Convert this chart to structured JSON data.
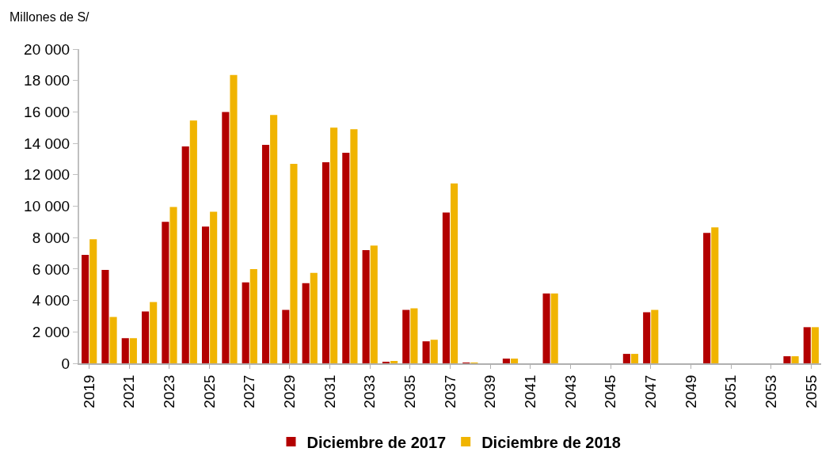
{
  "chart_data": {
    "type": "bar",
    "ylabel": "Millones de S/",
    "categories": [
      "2019",
      null,
      "2021",
      null,
      "2023",
      null,
      "2025",
      null,
      "2027",
      null,
      "2029",
      null,
      "2031",
      null,
      "2033",
      null,
      "2035",
      null,
      "2037",
      null,
      "2039",
      null,
      "2041",
      null,
      "2043",
      null,
      "2045",
      null,
      "2047",
      null,
      "2049",
      null,
      "2051",
      null,
      "2053",
      null,
      "2055"
    ],
    "series": [
      {
        "name": "Diciembre de 2017",
        "color": "#b30000",
        "values": [
          6900,
          5950,
          1600,
          3300,
          9000,
          13800,
          8700,
          16000,
          5150,
          13900,
          3400,
          5100,
          12800,
          13400,
          7200,
          100,
          3400,
          1400,
          9600,
          50,
          0,
          300,
          0,
          4450,
          0,
          0,
          0,
          600,
          3250,
          0,
          0,
          8300,
          0,
          0,
          0,
          450,
          2300
        ]
      },
      {
        "name": "Diciembre de 2018",
        "color": "#f0b400",
        "values": [
          7900,
          2950,
          1600,
          3900,
          9950,
          15450,
          9650,
          18350,
          6000,
          15800,
          12700,
          5750,
          15000,
          14900,
          7500,
          150,
          3500,
          1500,
          11450,
          50,
          0,
          300,
          0,
          4450,
          0,
          0,
          0,
          600,
          3400,
          0,
          0,
          8650,
          0,
          0,
          0,
          450,
          2300
        ]
      }
    ],
    "ylim": [
      0,
      20000
    ],
    "yticks": [
      {
        "value": 0,
        "label": "0"
      },
      {
        "value": 2000,
        "label": "2 000"
      },
      {
        "value": 4000,
        "label": "4 000"
      },
      {
        "value": 6000,
        "label": "6 000"
      },
      {
        "value": 8000,
        "label": "8 000"
      },
      {
        "value": 10000,
        "label": "10 000"
      },
      {
        "value": 12000,
        "label": "12 000"
      },
      {
        "value": 14000,
        "label": "14 000"
      },
      {
        "value": 16000,
        "label": "16 000"
      },
      {
        "value": 18000,
        "label": "18 000"
      },
      {
        "value": 20000,
        "label": "20 000"
      }
    ],
    "grid": false,
    "legend": "bottom"
  }
}
